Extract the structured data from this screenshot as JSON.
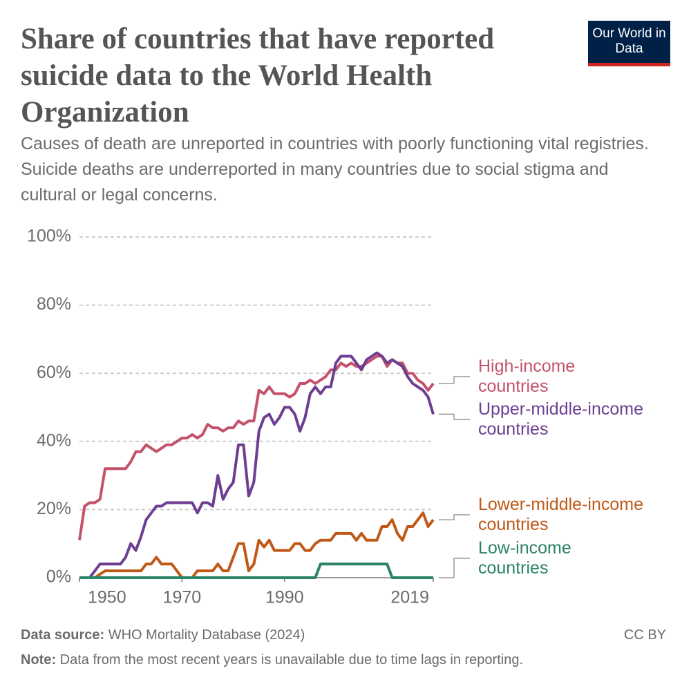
{
  "chart_data": {
    "type": "line",
    "title": "Share of countries that have reported suicide data to the World Health Organization",
    "subtitle": "Causes of death are unreported in countries with poorly functioning vital registries. Suicide deaths are underreported in many countries due to social stigma and cultural or legal concerns.",
    "logo": "Our World in Data",
    "source_label": "Data source:",
    "source": "WHO Mortality Database (2024)",
    "license": "CC BY",
    "note_label": "Note:",
    "note": "Data from the most recent years is unavailable due to time lags in reporting.",
    "x": [
      1950,
      1951,
      1952,
      1953,
      1954,
      1955,
      1956,
      1957,
      1958,
      1959,
      1960,
      1961,
      1962,
      1963,
      1964,
      1965,
      1966,
      1967,
      1968,
      1969,
      1970,
      1971,
      1972,
      1973,
      1974,
      1975,
      1976,
      1977,
      1978,
      1979,
      1980,
      1981,
      1982,
      1983,
      1984,
      1985,
      1986,
      1987,
      1988,
      1989,
      1990,
      1991,
      1992,
      1993,
      1994,
      1995,
      1996,
      1997,
      1998,
      1999,
      2000,
      2001,
      2002,
      2003,
      2004,
      2005,
      2006,
      2007,
      2008,
      2009,
      2010,
      2011,
      2012,
      2013,
      2014,
      2015,
      2016,
      2017,
      2018,
      2019
    ],
    "xlim": [
      1950,
      2019
    ],
    "xticks": [
      1950,
      1970,
      1990,
      2019
    ],
    "ylim": [
      0,
      100
    ],
    "yticks": [
      {
        "value": 0,
        "label": "0%"
      },
      {
        "value": 20,
        "label": "20%"
      },
      {
        "value": 40,
        "label": "40%"
      },
      {
        "value": 60,
        "label": "60%"
      },
      {
        "value": 80,
        "label": "80%"
      },
      {
        "value": 100,
        "label": "100%"
      }
    ],
    "grid": true,
    "series": [
      {
        "name": "High-income countries",
        "color": "#c4526a",
        "values": [
          11,
          21,
          22,
          22,
          23,
          32,
          32,
          32,
          32,
          32,
          34,
          37,
          37,
          39,
          38,
          37,
          38,
          39,
          39,
          40,
          41,
          41,
          42,
          41,
          42,
          45,
          44,
          44,
          43,
          44,
          44,
          46,
          45,
          46,
          46,
          55,
          54,
          56,
          54,
          54,
          54,
          53,
          54,
          57,
          57,
          58,
          57,
          58,
          59,
          61,
          61,
          63,
          62,
          63,
          62,
          62,
          63,
          64,
          65,
          65,
          62,
          64,
          63,
          63,
          60,
          60,
          58,
          57,
          55,
          57
        ]
      },
      {
        "name": "Upper-middle-income countries",
        "color": "#6d3e91",
        "values": [
          null,
          null,
          0,
          2,
          4,
          4,
          4,
          4,
          4,
          6,
          10,
          8,
          12,
          17,
          19,
          21,
          21,
          22,
          22,
          22,
          22,
          22,
          22,
          19,
          22,
          22,
          21,
          30,
          23,
          26,
          28,
          39,
          39,
          24,
          28,
          43,
          47,
          48,
          45,
          47,
          50,
          50,
          48,
          43,
          47,
          54,
          56,
          54,
          56,
          56,
          63,
          65,
          65,
          65,
          63,
          61,
          64,
          65,
          66,
          65,
          63,
          64,
          63,
          62,
          59,
          57,
          56,
          55,
          53,
          48
        ]
      },
      {
        "name": "Lower-middle-income countries",
        "color": "#c05917",
        "values": [
          0,
          0,
          0,
          0,
          1,
          2,
          2,
          2,
          2,
          2,
          2,
          2,
          2,
          4,
          4,
          6,
          4,
          4,
          4,
          2,
          0,
          0,
          0,
          2,
          2,
          2,
          2,
          4,
          2,
          2,
          6,
          10,
          10,
          2,
          4,
          11,
          9,
          11,
          8,
          8,
          8,
          8,
          10,
          10,
          8,
          8,
          10,
          11,
          11,
          11,
          13,
          13,
          13,
          13,
          11,
          13,
          11,
          11,
          11,
          15,
          15,
          17,
          13,
          11,
          15,
          15,
          17,
          19,
          15,
          17
        ]
      },
      {
        "name": "Low-income countries",
        "color": "#2c8465",
        "values": [
          0,
          0,
          0,
          0,
          0,
          0,
          0,
          0,
          0,
          0,
          0,
          0,
          0,
          0,
          0,
          0,
          0,
          0,
          0,
          0,
          0,
          0,
          0,
          0,
          0,
          0,
          0,
          0,
          0,
          0,
          0,
          0,
          0,
          0,
          0,
          0,
          0,
          0,
          0,
          0,
          0,
          0,
          0,
          0,
          0,
          0,
          0,
          4,
          4,
          4,
          4,
          4,
          4,
          4,
          4,
          4,
          4,
          4,
          4,
          4,
          4,
          0,
          0,
          0,
          0,
          0,
          0,
          0,
          0,
          0
        ]
      }
    ]
  }
}
